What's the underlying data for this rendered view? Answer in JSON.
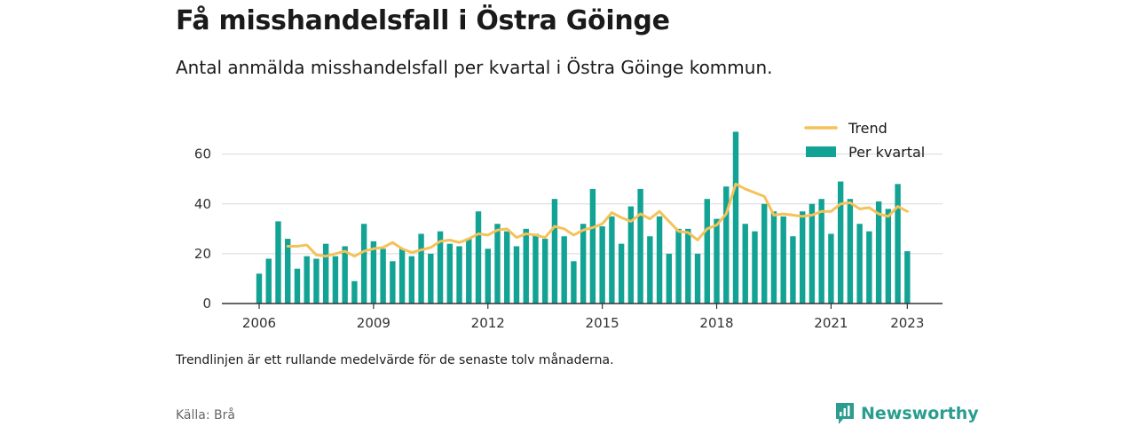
{
  "header": {
    "title": "Få misshandelsfall i Östra Göinge",
    "subtitle": "Antal anmälda misshandelsfall per kvartal i Östra Göinge kommun."
  },
  "footer": {
    "note": "Trendlinjen är ett rullande medelvärde för de senaste tolv månaderna.",
    "source": "Källa: Brå",
    "brand": "Newsworthy"
  },
  "colors": {
    "bar": "#12a394",
    "trend": "#f5c25a",
    "grid": "#d9d9d9",
    "axis": "#333333",
    "brand": "#2a9d8f"
  },
  "chart_data": {
    "type": "bar",
    "categories": [
      "2006 Q1",
      "2006 Q2",
      "2006 Q3",
      "2006 Q4",
      "2007 Q1",
      "2007 Q2",
      "2007 Q3",
      "2007 Q4",
      "2008 Q1",
      "2008 Q2",
      "2008 Q3",
      "2008 Q4",
      "2009 Q1",
      "2009 Q2",
      "2009 Q3",
      "2009 Q4",
      "2010 Q1",
      "2010 Q2",
      "2010 Q3",
      "2010 Q4",
      "2011 Q1",
      "2011 Q2",
      "2011 Q3",
      "2011 Q4",
      "2012 Q1",
      "2012 Q2",
      "2012 Q3",
      "2012 Q4",
      "2013 Q1",
      "2013 Q2",
      "2013 Q3",
      "2013 Q4",
      "2014 Q1",
      "2014 Q2",
      "2014 Q3",
      "2014 Q4",
      "2015 Q1",
      "2015 Q2",
      "2015 Q3",
      "2015 Q4",
      "2016 Q1",
      "2016 Q2",
      "2016 Q3",
      "2016 Q4",
      "2017 Q1",
      "2017 Q2",
      "2017 Q3",
      "2017 Q4",
      "2018 Q1",
      "2018 Q2",
      "2018 Q3",
      "2018 Q4",
      "2019 Q1",
      "2019 Q2",
      "2019 Q3",
      "2019 Q4",
      "2020 Q1",
      "2020 Q2",
      "2020 Q3",
      "2020 Q4",
      "2021 Q1",
      "2021 Q2",
      "2021 Q3",
      "2021 Q4",
      "2022 Q1",
      "2022 Q2",
      "2022 Q3",
      "2022 Q4",
      "2023 Q1"
    ],
    "series": [
      {
        "name": "Per kvartal",
        "kind": "bar",
        "values": [
          12,
          18,
          33,
          26,
          14,
          19,
          18,
          24,
          19,
          23,
          9,
          32,
          25,
          22,
          17,
          22,
          19,
          28,
          20,
          29,
          24,
          23,
          26,
          37,
          22,
          32,
          29,
          23,
          30,
          28,
          26,
          42,
          27,
          17,
          32,
          46,
          31,
          35,
          24,
          39,
          46,
          27,
          35,
          20,
          30,
          30,
          20,
          42,
          34,
          47,
          69,
          32,
          29,
          40,
          37,
          35,
          27,
          37,
          40,
          42,
          28,
          49,
          42,
          32,
          29,
          41,
          38,
          48,
          21
        ]
      },
      {
        "name": "Trend",
        "kind": "line",
        "values": [
          null,
          null,
          null,
          23,
          23,
          23.5,
          19.5,
          19,
          20,
          21,
          19,
          21,
          22,
          22.5,
          24.5,
          22,
          20.5,
          21.5,
          22.5,
          25,
          25.5,
          24.5,
          26,
          28,
          27.5,
          29.5,
          30,
          26.5,
          28,
          27.5,
          26.5,
          31,
          30,
          27.5,
          29.5,
          30.5,
          32,
          36.5,
          34.5,
          33,
          36,
          34,
          37,
          33,
          29,
          28.5,
          25.5,
          30,
          31.5,
          36,
          48,
          46,
          44.5,
          43,
          35.5,
          36,
          35.5,
          35,
          35.5,
          37,
          37,
          40,
          40.5,
          38,
          38.5,
          36,
          35,
          39,
          37
        ]
      }
    ],
    "x_ticks": [
      "2006",
      "2009",
      "2012",
      "2015",
      "2018",
      "2021",
      "2023"
    ],
    "y_ticks": [
      0,
      20,
      40,
      60
    ],
    "ylim": [
      0,
      72
    ],
    "legend": [
      "Trend",
      "Per kvartal"
    ],
    "legend_position": "top-right",
    "grid": "horizontal"
  }
}
